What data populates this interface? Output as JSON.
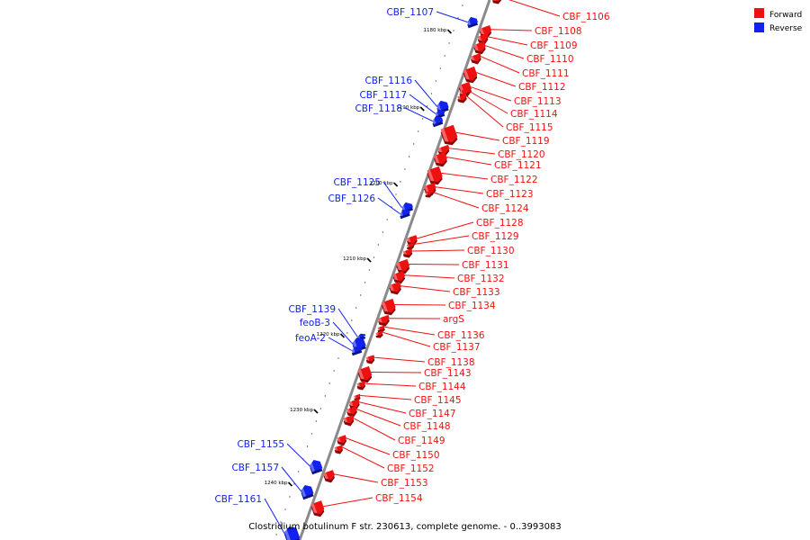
{
  "caption": "Clostridium botulinum F str. 230613, complete genome. - 0..3993083",
  "legend": [
    {
      "label": "Forward",
      "color": "#ee1111"
    },
    {
      "label": "Reverse",
      "color": "#1122ee"
    }
  ],
  "colors": {
    "forward": "#ee1111",
    "reverse": "#1122ee",
    "backbone": "#888888"
  },
  "ticks": [
    "1180 kbp",
    "1190 kbp",
    "1200 kbp",
    "1210 kbp",
    "1220 kbp",
    "1230 kbp",
    "1240 kbp"
  ],
  "genes": [
    {
      "name": "CBF_1106",
      "strand": "forward"
    },
    {
      "name": "CBF_1107",
      "strand": "reverse"
    },
    {
      "name": "CBF_1108",
      "strand": "forward"
    },
    {
      "name": "CBF_1109",
      "strand": "forward"
    },
    {
      "name": "CBF_1110",
      "strand": "forward"
    },
    {
      "name": "CBF_1111",
      "strand": "forward"
    },
    {
      "name": "CBF_1112",
      "strand": "forward"
    },
    {
      "name": "CBF_1113",
      "strand": "forward"
    },
    {
      "name": "CBF_1114",
      "strand": "forward"
    },
    {
      "name": "CBF_1115",
      "strand": "forward"
    },
    {
      "name": "CBF_1116",
      "strand": "reverse"
    },
    {
      "name": "CBF_1117",
      "strand": "reverse"
    },
    {
      "name": "CBF_1118",
      "strand": "reverse"
    },
    {
      "name": "CBF_1119",
      "strand": "forward"
    },
    {
      "name": "CBF_1120",
      "strand": "forward"
    },
    {
      "name": "CBF_1121",
      "strand": "forward"
    },
    {
      "name": "CBF_1122",
      "strand": "forward"
    },
    {
      "name": "CBF_1123",
      "strand": "forward"
    },
    {
      "name": "CBF_1124",
      "strand": "forward"
    },
    {
      "name": "CBF_1125",
      "strand": "reverse"
    },
    {
      "name": "CBF_1126",
      "strand": "reverse"
    },
    {
      "name": "CBF_1128",
      "strand": "forward"
    },
    {
      "name": "CBF_1129",
      "strand": "forward"
    },
    {
      "name": "CBF_1130",
      "strand": "forward"
    },
    {
      "name": "CBF_1131",
      "strand": "forward"
    },
    {
      "name": "CBF_1132",
      "strand": "forward"
    },
    {
      "name": "CBF_1133",
      "strand": "forward"
    },
    {
      "name": "CBF_1134",
      "strand": "forward"
    },
    {
      "name": "argS",
      "strand": "forward"
    },
    {
      "name": "CBF_1136",
      "strand": "forward"
    },
    {
      "name": "CBF_1137",
      "strand": "forward"
    },
    {
      "name": "CBF_1138",
      "strand": "forward"
    },
    {
      "name": "CBF_1139",
      "strand": "reverse"
    },
    {
      "name": "feoB-3",
      "strand": "reverse"
    },
    {
      "name": "feoA-2",
      "strand": "reverse"
    },
    {
      "name": "CBF_1143",
      "strand": "forward"
    },
    {
      "name": "CBF_1144",
      "strand": "forward"
    },
    {
      "name": "CBF_1145",
      "strand": "forward"
    },
    {
      "name": "CBF_1147",
      "strand": "forward"
    },
    {
      "name": "CBF_1148",
      "strand": "forward"
    },
    {
      "name": "CBF_1149",
      "strand": "forward"
    },
    {
      "name": "CBF_1150",
      "strand": "forward"
    },
    {
      "name": "CBF_1152",
      "strand": "forward"
    },
    {
      "name": "CBF_1153",
      "strand": "forward"
    },
    {
      "name": "CBF_1154",
      "strand": "forward"
    },
    {
      "name": "CBF_1155",
      "strand": "reverse"
    },
    {
      "name": "CBF_1157",
      "strand": "reverse"
    },
    {
      "name": "CBF_1161",
      "strand": "reverse"
    }
  ]
}
